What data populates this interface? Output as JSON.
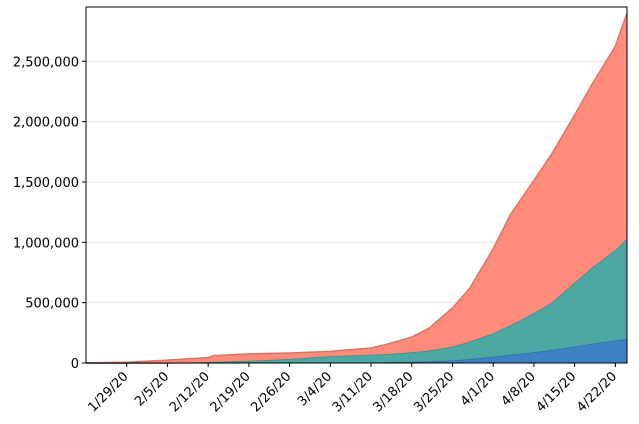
{
  "chart_data": {
    "type": "area",
    "stacked": true,
    "title": "",
    "xlabel": "",
    "ylabel": "",
    "grid": "horizontal",
    "ylim": [
      0,
      2950000
    ],
    "yticks": [
      0,
      500000,
      1000000,
      1500000,
      2000000,
      2500000
    ],
    "ytick_labels": [
      "0",
      "500,000",
      "1,000,000",
      "1,500,000",
      "2,000,000",
      "2,500,000"
    ],
    "xticks": [
      "1/29/20",
      "2/5/20",
      "2/12/20",
      "2/19/20",
      "2/26/20",
      "3/4/20",
      "3/11/20",
      "3/18/20",
      "3/25/20",
      "4/1/20",
      "4/8/20",
      "4/15/20",
      "4/22/20"
    ],
    "x": [
      "1/22/20",
      "1/29/20",
      "2/5/20",
      "2/12/20",
      "2/13/20",
      "2/19/20",
      "2/26/20",
      "3/4/20",
      "3/11/20",
      "3/14/20",
      "3/18/20",
      "3/21/20",
      "3/25/20",
      "3/28/20",
      "4/1/20",
      "4/4/20",
      "4/8/20",
      "4/11/20",
      "4/15/20",
      "4/18/20",
      "4/22/20",
      "4/24/20"
    ],
    "series": [
      {
        "color": "#3a7fc4",
        "values": [
          17,
          133,
          565,
          1370,
          1526,
          2122,
          2770,
          3460,
          4630,
          5800,
          9000,
          13000,
          21000,
          32000,
          52000,
          68000,
          88000,
          108000,
          135000,
          160000,
          185000,
          200000
        ]
      },
      {
        "color": "#48a6a1",
        "values": [
          28,
          120,
          900,
          6300,
          8000,
          16000,
          30500,
          53000,
          64000,
          68000,
          80000,
          90000,
          115000,
          145000,
          195000,
          245000,
          325000,
          390000,
          530000,
          630000,
          750000,
          830000
        ]
      },
      {
        "color": "#ff8a78",
        "values": [
          535,
          5750,
          22700,
          37300,
          52000,
          57400,
          49800,
          39700,
          56000,
          85000,
          126000,
          186000,
          320000,
          445000,
          700000,
          920000,
          1100000,
          1230000,
          1390000,
          1520000,
          1690000,
          1870000
        ]
      }
    ]
  }
}
